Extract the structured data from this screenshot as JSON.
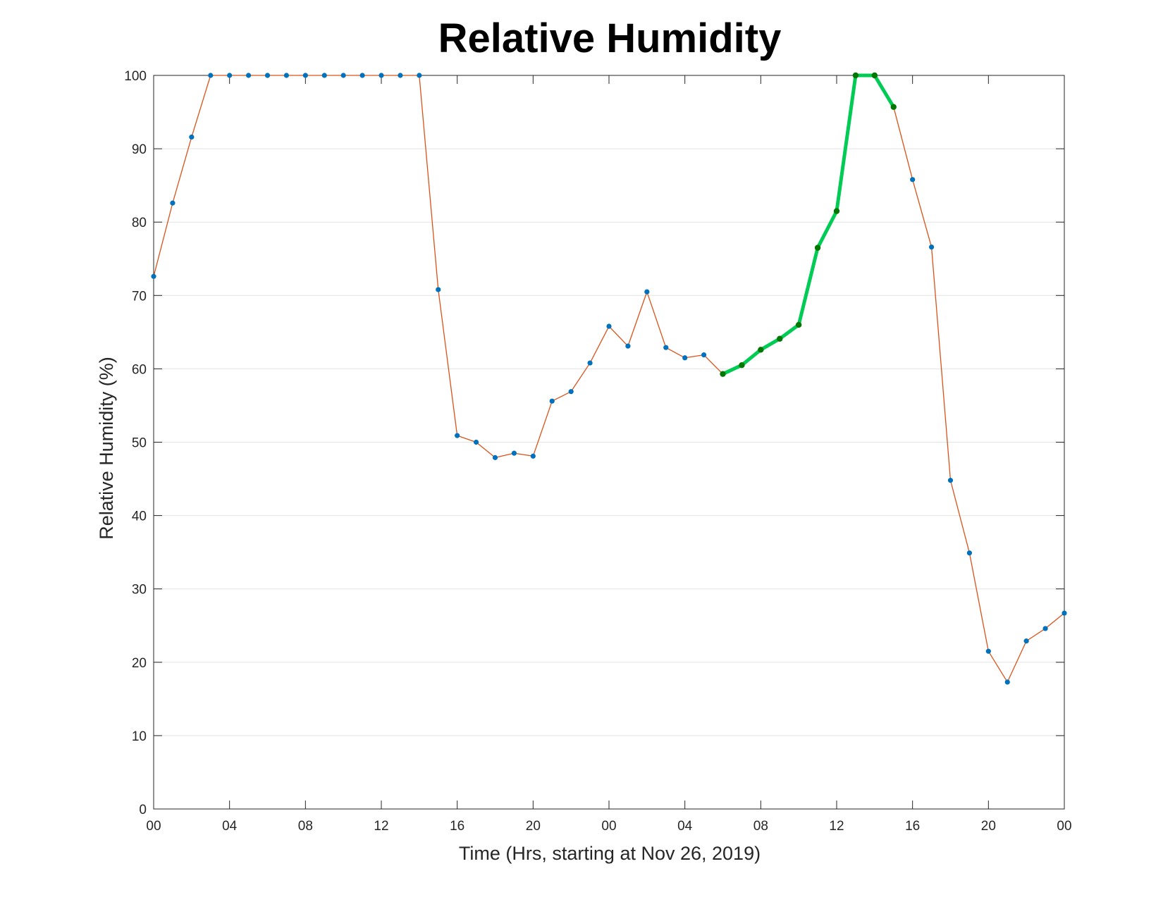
{
  "chart_data": {
    "type": "line",
    "title": "Relative Humidity",
    "xlabel": "Time (Hrs, starting at Nov 26, 2019)",
    "ylabel": "Relative Humidity (%)",
    "x_units": "hours since Nov 26, 2019 00:00",
    "xlim": [
      0,
      48
    ],
    "ylim": [
      0,
      100
    ],
    "xticks": [
      0,
      4,
      8,
      12,
      16,
      20,
      24,
      28,
      32,
      36,
      40,
      44,
      48
    ],
    "xtick_labels": [
      "00",
      "04",
      "08",
      "12",
      "16",
      "20",
      "00",
      "04",
      "08",
      "12",
      "16",
      "20",
      "00"
    ],
    "yticks": [
      0,
      10,
      20,
      30,
      40,
      50,
      60,
      70,
      80,
      90,
      100
    ],
    "grid": "horizontal",
    "series": [
      {
        "x": [
          0,
          1,
          2,
          3,
          4,
          5,
          6,
          7,
          8,
          9,
          10,
          11,
          12,
          13,
          14,
          15,
          16,
          17,
          18,
          19,
          20,
          21,
          22,
          23,
          24,
          25,
          26,
          27,
          28,
          29,
          30,
          31,
          32,
          33,
          34,
          35,
          36,
          37,
          38,
          39,
          40,
          41,
          42,
          43,
          44,
          45,
          46,
          47,
          48
        ],
        "values": [
          72.6,
          82.6,
          91.6,
          100,
          100,
          100,
          100,
          100,
          100,
          100,
          100,
          100,
          100,
          100,
          100,
          70.8,
          50.9,
          50.0,
          47.9,
          48.5,
          48.1,
          55.6,
          56.9,
          60.8,
          65.8,
          63.1,
          70.5,
          62.9,
          61.5,
          61.9,
          59.3,
          60.5,
          62.6,
          64.1,
          66.0,
          76.5,
          81.5,
          100,
          100,
          95.7,
          85.8,
          76.6,
          44.8,
          34.9,
          21.5,
          17.3,
          22.9,
          24.6,
          26.7
        ],
        "line_color": "#d95319",
        "marker_color": "#0072bd",
        "style": "thin line with dot markers"
      },
      {
        "x": [
          30,
          31,
          32,
          33,
          34,
          35,
          36,
          37,
          38,
          39
        ],
        "values": [
          59.3,
          60.5,
          62.6,
          64.1,
          66.0,
          76.5,
          81.5,
          100,
          100,
          95.7
        ],
        "line_color": "#00cc55",
        "marker_color": "#007700",
        "style": "thick highlighted segment with dot markers"
      }
    ]
  }
}
